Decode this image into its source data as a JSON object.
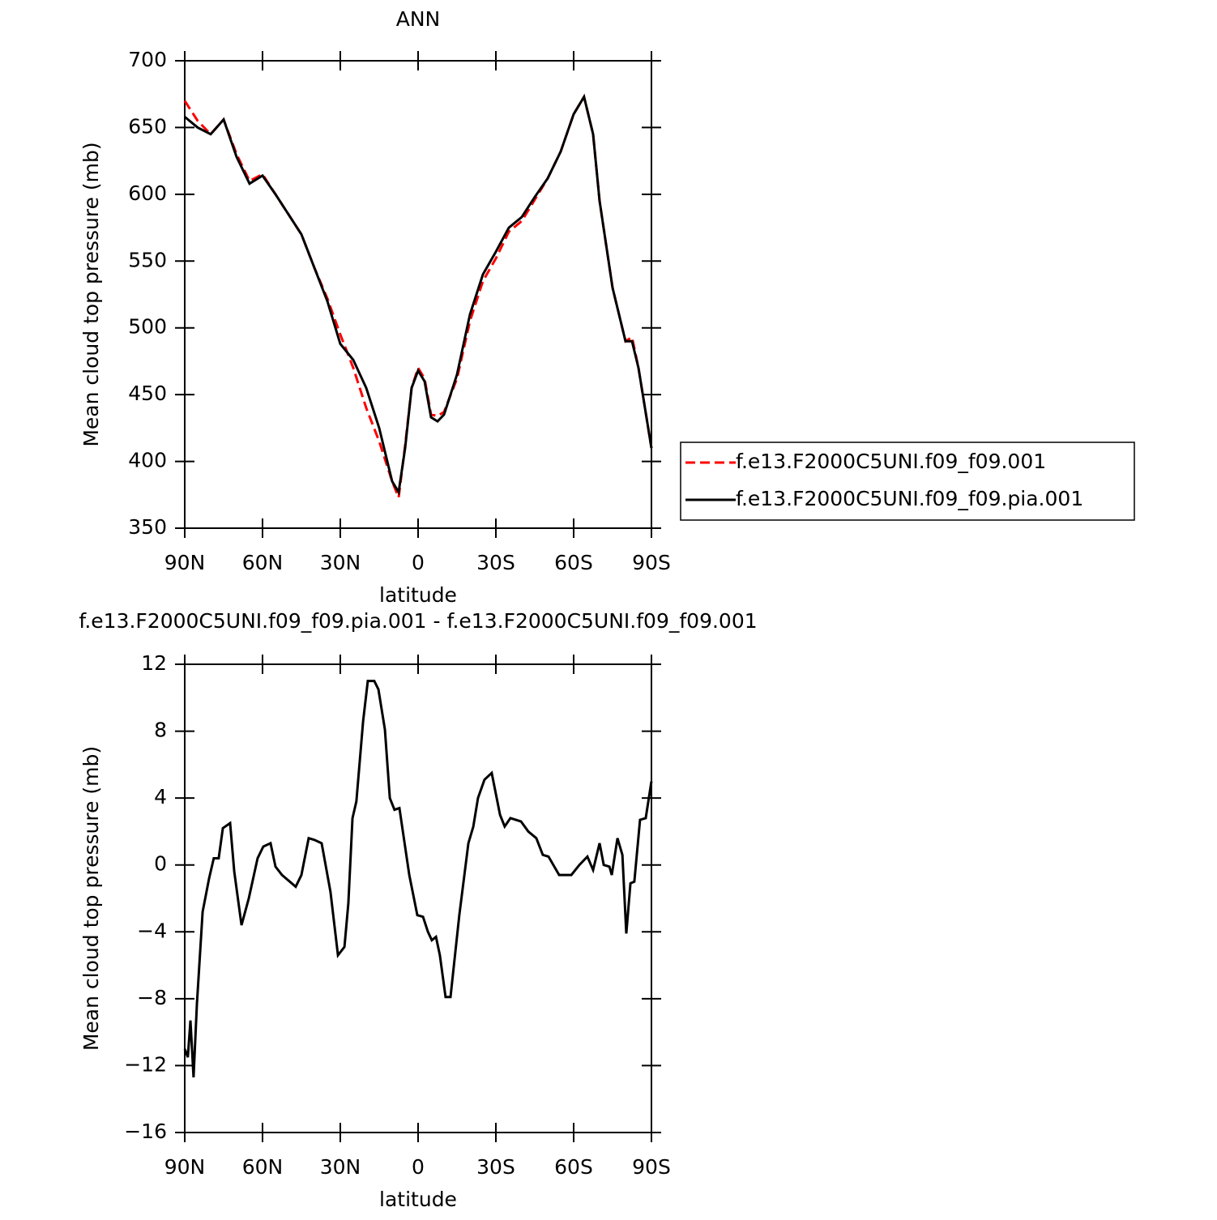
{
  "chart_data": [
    {
      "type": "line",
      "title": "ANN",
      "xlabel": "latitude",
      "ylabel": "Mean cloud top pressure (mb)",
      "x": [
        90,
        85,
        80,
        75,
        70,
        65,
        60,
        55,
        50,
        45,
        40,
        35,
        30,
        25,
        20,
        15,
        10,
        7.5,
        5,
        2.5,
        0,
        -2.5,
        -5,
        -7.5,
        -10,
        -15,
        -20,
        -25,
        -30,
        -35,
        -40,
        -45,
        -50,
        -55,
        -60,
        -64,
        -67.5,
        -70,
        -75,
        -80,
        -82.5,
        -85,
        -90
      ],
      "series": [
        {
          "name": "f.e13.F2000C5UNI.f09_f09.001",
          "color": "#ff0000",
          "line_style": "dashed",
          "values": [
            670,
            655,
            645,
            656,
            630,
            610,
            615,
            600,
            585,
            570,
            545,
            522,
            495,
            470,
            440,
            415,
            385,
            373,
            412,
            455,
            470,
            462,
            435,
            434,
            437,
            462,
            505,
            535,
            552,
            572,
            580,
            596,
            612,
            632,
            660,
            673,
            645,
            595,
            530,
            490,
            493,
            470,
            410
          ]
        },
        {
          "name": "f.e13.F2000C5UNI.f09_f09.pia.001",
          "color": "#000000",
          "line_style": "solid",
          "values": [
            658,
            650,
            645,
            656,
            628,
            608,
            614,
            600,
            585,
            570,
            545,
            520,
            488,
            476,
            455,
            425,
            385,
            377,
            410,
            455,
            468,
            460,
            433,
            430,
            435,
            465,
            510,
            540,
            557,
            575,
            583,
            598,
            612,
            632,
            660,
            673,
            645,
            595,
            530,
            490,
            490,
            470,
            410
          ]
        }
      ],
      "xlim": [
        90,
        -90
      ],
      "xticks": [
        {
          "value": 90,
          "label": "90N"
        },
        {
          "value": 60,
          "label": "60N"
        },
        {
          "value": 30,
          "label": "30N"
        },
        0,
        {
          "value": -30,
          "label": "30S"
        },
        {
          "value": -60,
          "label": "60S"
        },
        {
          "value": -90,
          "label": "90S"
        }
      ],
      "ylim": [
        350,
        700
      ],
      "yticks": [
        350,
        400,
        450,
        500,
        550,
        600,
        650,
        700
      ],
      "legend": "right"
    },
    {
      "type": "line",
      "title": "f.e13.F2000C5UNI.f09_f09.pia.001 - f.e13.F2000C5UNI.f09_f09.001",
      "xlabel": "latitude",
      "ylabel": "Mean cloud top pressure (mb)",
      "x": [
        90,
        88.8,
        87.8,
        86.6,
        85.3,
        83.1,
        80.6,
        78.8,
        76.9,
        75.3,
        72.5,
        70.9,
        68.1,
        65.3,
        61.9,
        59.7,
        56.9,
        55,
        52.5,
        47.2,
        45,
        42.2,
        40,
        37.2,
        33.8,
        30.9,
        28.4,
        26.9,
        25.3,
        23.8,
        21.2,
        19.4,
        16.9,
        15.3,
        12.8,
        10.9,
        9.1,
        7.2,
        3.4,
        0.3,
        -1.9,
        -3.8,
        -5.3,
        -6.9,
        -8.4,
        -10.6,
        -12.5,
        -15.9,
        -19.4,
        -21.3,
        -23.1,
        -25.6,
        -28.4,
        -31.6,
        -33.4,
        -35.6,
        -39.7,
        -42.5,
        -45.6,
        -48.1,
        -50.3,
        -54.4,
        -59.1,
        -62.2,
        -65.3,
        -67.5,
        -70,
        -71.6,
        -73.8,
        -74.7,
        -76.9,
        -78.8,
        -80.3,
        -81.9,
        -83.4,
        -85.6,
        -87.8,
        -90
      ],
      "values": [
        -11,
        -11.5,
        -9.3,
        -12.7,
        -8.3,
        -2.8,
        -0.8,
        0.4,
        0.4,
        2.2,
        2.5,
        -0.4,
        -3.6,
        -2,
        0.4,
        1.1,
        1.3,
        -0.1,
        -0.6,
        -1.3,
        -0.6,
        1.6,
        1.5,
        1.3,
        -1.6,
        -5.4,
        -4.9,
        -2.3,
        2.8,
        3.8,
        8.6,
        11,
        11,
        10.5,
        8.1,
        4,
        3.3,
        3.4,
        -0.6,
        -3,
        -3.1,
        -4,
        -4.5,
        -4.3,
        -5.4,
        -7.9,
        -7.9,
        -3,
        1.3,
        2.3,
        4,
        5.1,
        5.5,
        3,
        2.3,
        2.8,
        2.6,
        2,
        1.6,
        0.6,
        0.5,
        -0.6,
        -0.6,
        0,
        0.5,
        -0.3,
        1.3,
        0,
        -0.1,
        -0.6,
        1.6,
        0.6,
        -4.1,
        -1.1,
        -1,
        2.7,
        2.8,
        5
      ],
      "color": "#000000",
      "xlim": [
        90,
        -90
      ],
      "xticks": [
        {
          "value": 90,
          "label": "90N"
        },
        {
          "value": 60,
          "label": "60N"
        },
        {
          "value": 30,
          "label": "30N"
        },
        0,
        {
          "value": -30,
          "label": "30S"
        },
        {
          "value": -60,
          "label": "60S"
        },
        {
          "value": -90,
          "label": "90S"
        }
      ],
      "ylim": [
        -16,
        12
      ],
      "yticks": [
        {
          "value": -16,
          "label": "−16"
        },
        {
          "value": -12,
          "label": "−12"
        },
        {
          "value": -8,
          "label": "−8"
        },
        {
          "value": -4,
          "label": "−4"
        },
        0,
        4,
        8,
        12
      ]
    }
  ]
}
